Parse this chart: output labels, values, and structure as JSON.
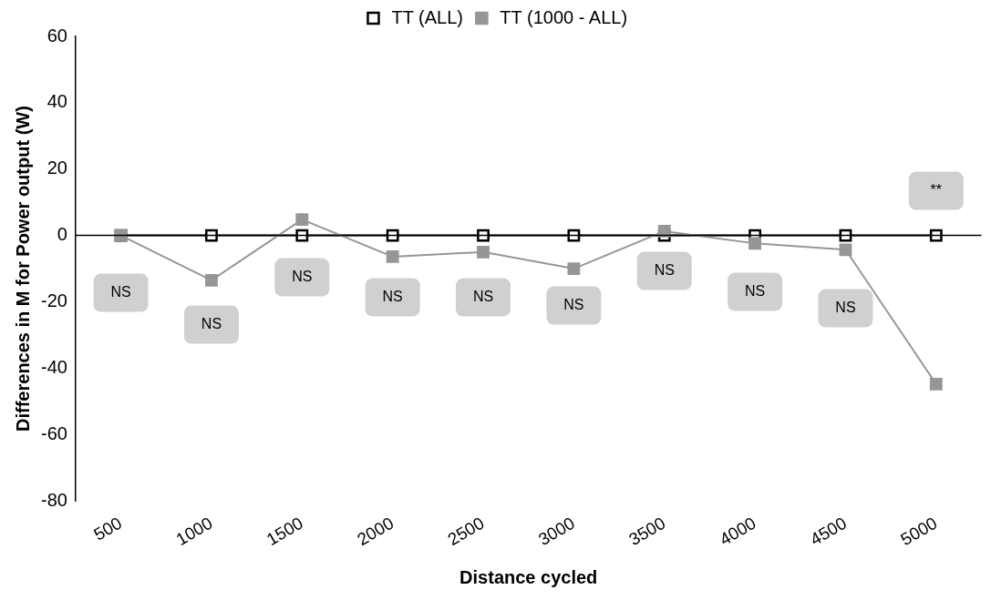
{
  "chart_data": {
    "type": "line",
    "xlabel": "Distance cycled",
    "ylabel": "Differences in M for Power output (W)",
    "categories": [
      "500",
      "1000",
      "1500",
      "2000",
      "2500",
      "3000",
      "3500",
      "4000",
      "4500",
      "5000"
    ],
    "series": [
      {
        "name": "TT (ALL)",
        "color": "#000000",
        "values": [
          0,
          0,
          0,
          0,
          0,
          0,
          0,
          0,
          0,
          0
        ]
      },
      {
        "name": "TT (1000 - ALL)",
        "color": "#969696",
        "values": [
          0,
          -13.5,
          4.8,
          -6.4,
          -5,
          -10,
          1.3,
          -2.4,
          -4.3,
          -44.8
        ]
      }
    ],
    "ylim": [
      -80,
      60
    ],
    "yticks": [
      -80,
      -60,
      -40,
      -20,
      0,
      20,
      40,
      60
    ],
    "grid": false,
    "legend": "top",
    "marker": "square",
    "annotations": [
      "NS",
      "NS",
      "NS",
      "NS",
      "NS",
      "NS",
      "NS",
      "NS",
      "NS",
      "**"
    ]
  }
}
